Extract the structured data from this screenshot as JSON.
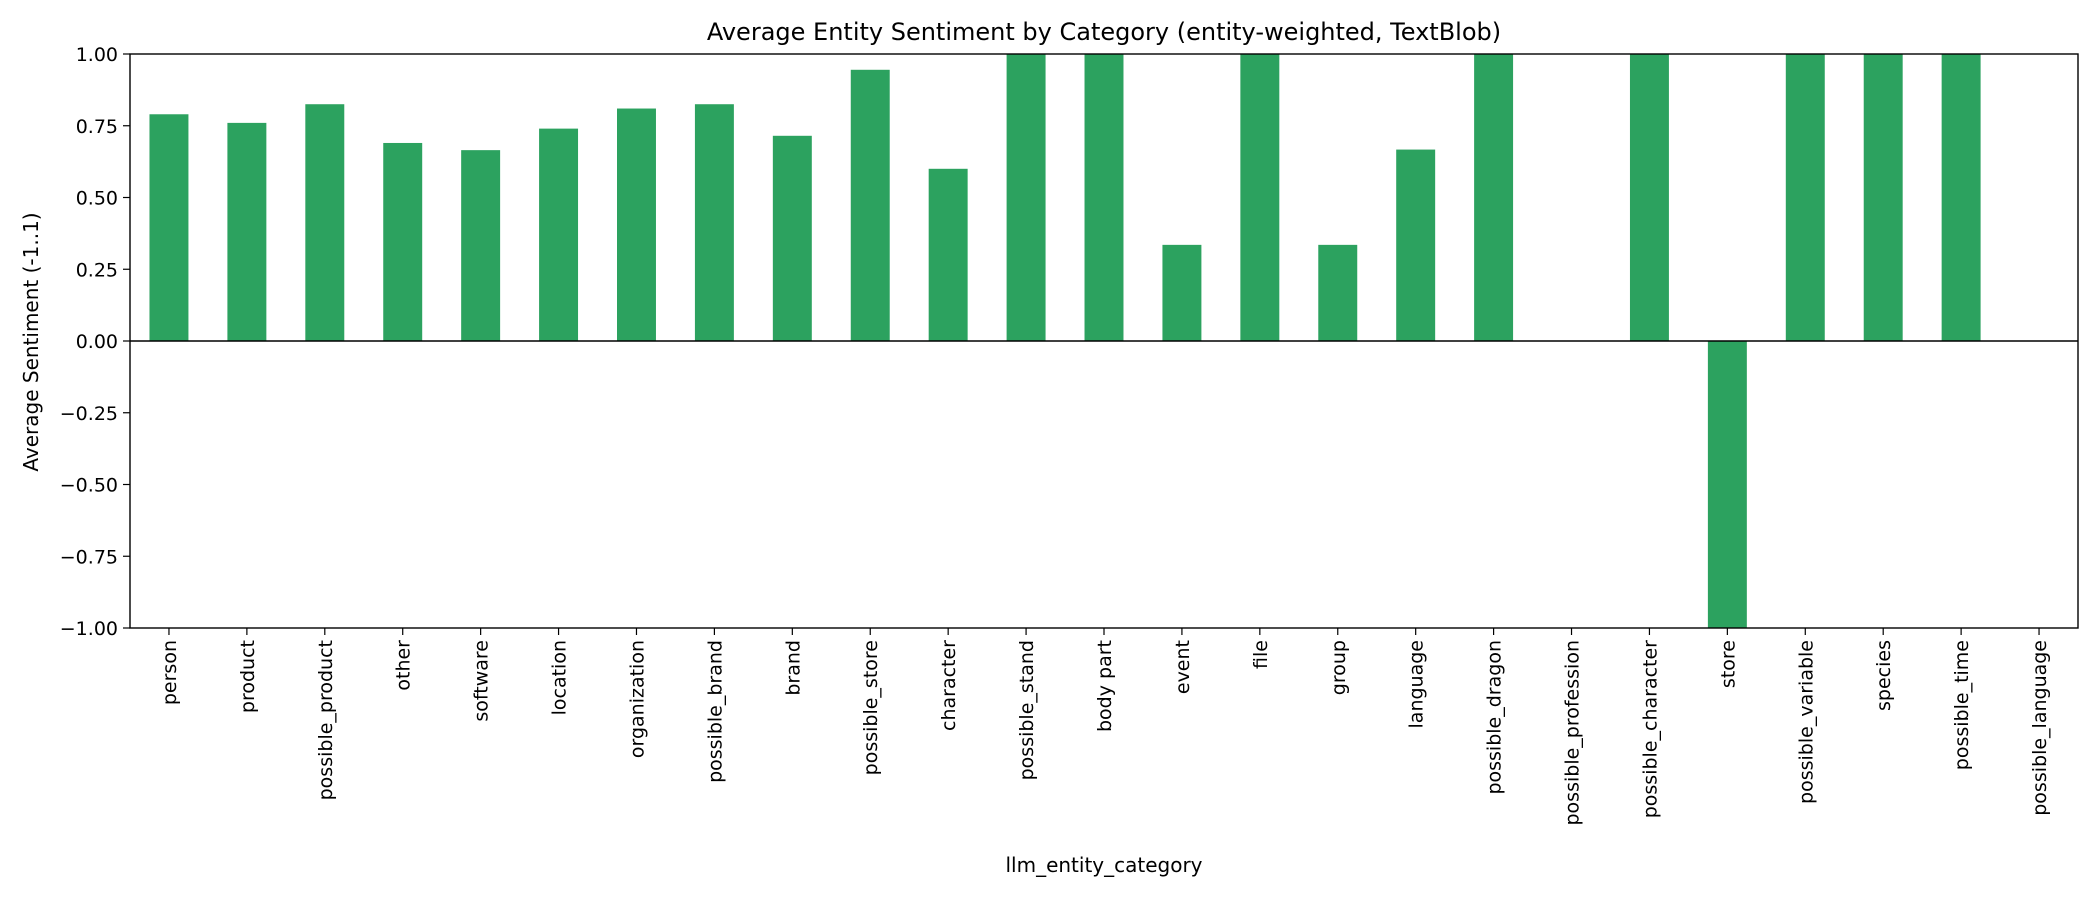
{
  "chart_data": {
    "type": "bar",
    "title": "Average Entity Sentiment by Category (entity-weighted, TextBlob)",
    "xlabel": "llm_entity_category",
    "ylabel": "Average Sentiment (-1..1)",
    "ylim": [
      -1,
      1
    ],
    "yticks": [
      1.0,
      0.75,
      0.5,
      0.25,
      0.0,
      -0.25,
      -0.5,
      -0.75,
      -1.0
    ],
    "ytick_labels": [
      "1.00",
      "0.75",
      "0.50",
      "0.25",
      "0.00",
      "−0.25",
      "−0.50",
      "−0.75",
      "−1.00"
    ],
    "grid": false,
    "legend": "none",
    "bar_color": "#2ca25f",
    "categories": [
      "person",
      "product",
      "possible_product",
      "other",
      "software",
      "location",
      "organization",
      "possible_brand",
      "brand",
      "possible_store",
      "character",
      "possible_stand",
      "body part",
      "event",
      "file",
      "group",
      "language",
      "possible_dragon",
      "possible_profession",
      "possible_character",
      "store",
      "possible_variable",
      "species",
      "possible_time",
      "possible_language"
    ],
    "values": [
      0.79,
      0.76,
      0.825,
      0.69,
      0.665,
      0.74,
      0.81,
      0.825,
      0.715,
      0.945,
      0.6,
      1.0,
      1.0,
      0.335,
      1.0,
      0.335,
      0.667,
      1.0,
      0.0,
      1.0,
      -1.0,
      1.0,
      1.0,
      1.0,
      0.0
    ]
  }
}
